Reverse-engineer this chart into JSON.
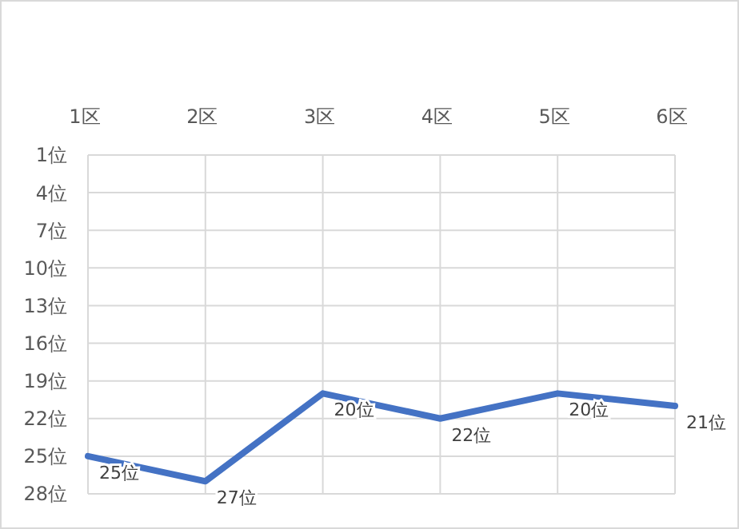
{
  "chart_data": {
    "type": "line",
    "categories": [
      "1区",
      "2区",
      "3区",
      "4区",
      "5区",
      "6区"
    ],
    "series": [
      {
        "color": "#4472c4",
        "values": [
          25,
          27,
          20,
          22,
          20,
          21
        ],
        "value_labels": [
          "25位",
          "27位",
          "20位",
          "22位",
          "20位",
          "21位"
        ]
      }
    ],
    "ylim": [
      28,
      1
    ],
    "yticks": [
      {
        "value": 1,
        "label": "1位"
      },
      {
        "value": 4,
        "label": "4位"
      },
      {
        "value": 7,
        "label": "7位"
      },
      {
        "value": 10,
        "label": "10位"
      },
      {
        "value": 13,
        "label": "13位"
      },
      {
        "value": 16,
        "label": "16位"
      },
      {
        "value": 19,
        "label": "19位"
      },
      {
        "value": 22,
        "label": "22位"
      },
      {
        "value": 25,
        "label": "25位"
      },
      {
        "value": 28,
        "label": "28位"
      }
    ],
    "grid": true,
    "marker": "none",
    "line_style": "solid"
  }
}
